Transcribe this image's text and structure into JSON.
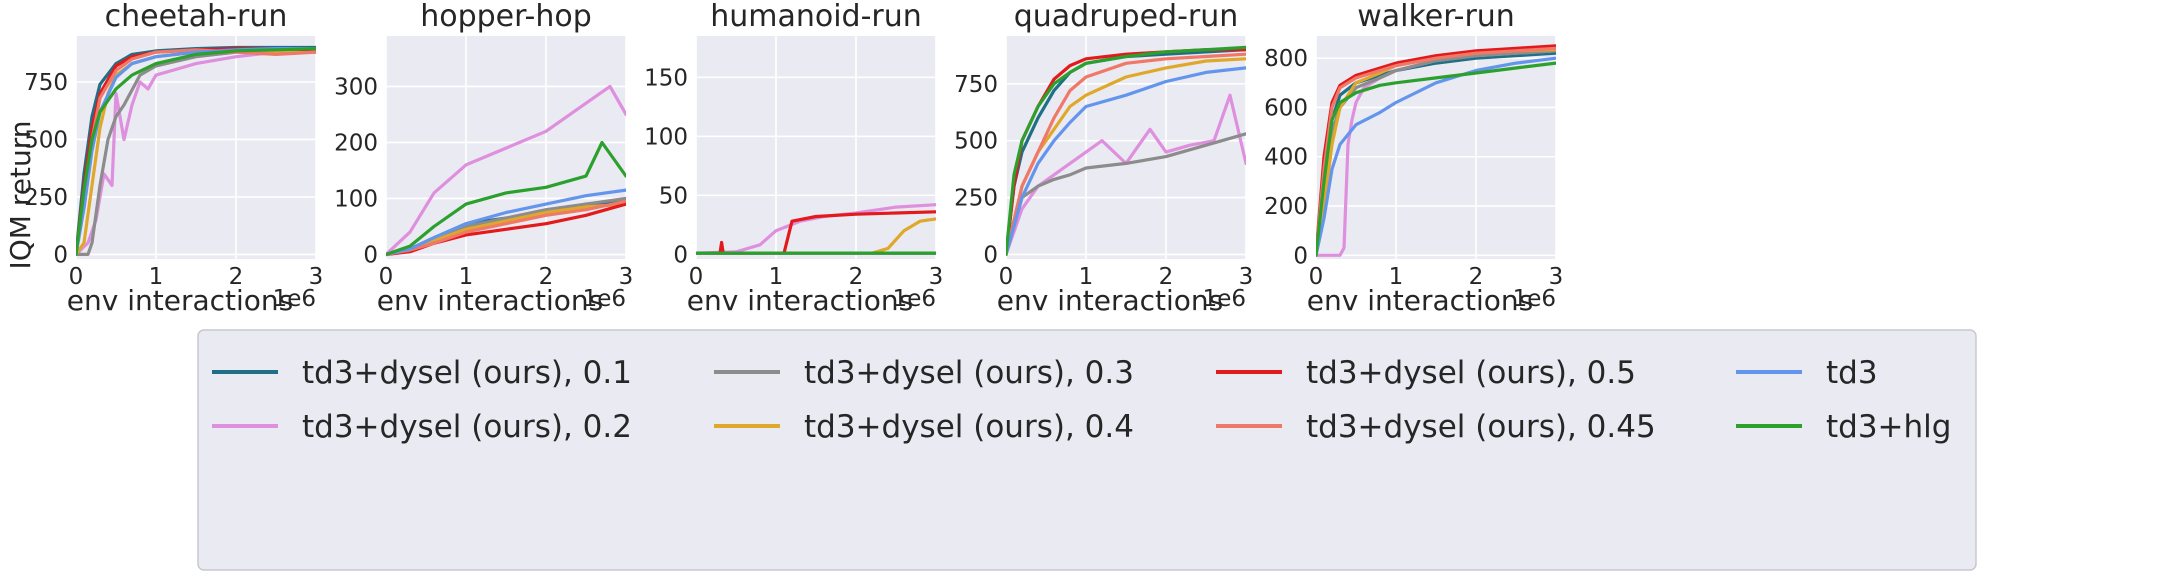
{
  "figure": {
    "ylabel": "IQM return",
    "xlabel": "env interactions",
    "x_offset_label": "1e6"
  },
  "legend": {
    "placement": "bottom-center",
    "entries": [
      {
        "key": "d01",
        "label": "td3+dysel (ours), 0.1",
        "color": "#1f6f86"
      },
      {
        "key": "d02",
        "label": "td3+dysel (ours), 0.2",
        "color": "#de8fde"
      },
      {
        "key": "d03",
        "label": "td3+dysel (ours), 0.3",
        "color": "#8c8c8c"
      },
      {
        "key": "d04",
        "label": "td3+dysel (ours), 0.4",
        "color": "#dfa82a"
      },
      {
        "key": "d05",
        "label": "td3+dysel (ours), 0.5",
        "color": "#e31a1c"
      },
      {
        "key": "d045",
        "label": "td3+dysel (ours), 0.45",
        "color": "#f07868"
      },
      {
        "key": "td3",
        "label": "td3",
        "color": "#6495ed"
      },
      {
        "key": "hlg",
        "label": "td3+hlg",
        "color": "#2ca02c"
      }
    ]
  },
  "chart_data": [
    {
      "type": "line",
      "title": "cheetah-run",
      "xlabel": "env interactions",
      "ylabel": "IQM return",
      "xlim": [
        0,
        3
      ],
      "ylim": [
        -20,
        950
      ],
      "xticks": [
        0,
        1,
        2,
        3
      ],
      "yticks": [
        0,
        250,
        500,
        750
      ],
      "grid": true,
      "series": [
        {
          "key": "d01",
          "x": [
            0,
            0.1,
            0.2,
            0.3,
            0.5,
            0.7,
            1.0,
            1.5,
            2.0,
            2.5,
            3.0
          ],
          "y": [
            0,
            350,
            600,
            740,
            830,
            870,
            885,
            895,
            900,
            900,
            900
          ]
        },
        {
          "key": "d02",
          "x": [
            0,
            0.15,
            0.25,
            0.35,
            0.45,
            0.5,
            0.6,
            0.7,
            0.8,
            0.9,
            1.0,
            1.2,
            1.5,
            2.0,
            2.5,
            3.0
          ],
          "y": [
            0,
            50,
            150,
            350,
            300,
            700,
            500,
            650,
            750,
            720,
            780,
            800,
            830,
            860,
            880,
            880
          ]
        },
        {
          "key": "d03",
          "x": [
            0,
            0.15,
            0.2,
            0.3,
            0.4,
            0.5,
            0.6,
            0.8,
            1.0,
            1.5,
            2.0,
            3.0
          ],
          "y": [
            0,
            0,
            50,
            300,
            500,
            600,
            650,
            780,
            820,
            860,
            880,
            890
          ]
        },
        {
          "key": "d04",
          "x": [
            0,
            0.1,
            0.2,
            0.3,
            0.4,
            0.5,
            0.7,
            1.0,
            1.5,
            2.0,
            2.5,
            3.0
          ],
          "y": [
            0,
            50,
            300,
            550,
            700,
            780,
            830,
            860,
            880,
            890,
            880,
            880
          ]
        },
        {
          "key": "d05",
          "x": [
            0,
            0.1,
            0.2,
            0.3,
            0.5,
            0.7,
            1.0,
            1.5,
            2.0,
            2.5,
            3.0
          ],
          "y": [
            0,
            300,
            550,
            700,
            820,
            860,
            880,
            890,
            895,
            895,
            890
          ]
        },
        {
          "key": "d045",
          "x": [
            0,
            0.1,
            0.2,
            0.3,
            0.5,
            0.7,
            1.0,
            1.5,
            2.0,
            2.5,
            3.0
          ],
          "y": [
            0,
            250,
            500,
            680,
            800,
            850,
            880,
            890,
            880,
            870,
            880
          ]
        },
        {
          "key": "td3",
          "x": [
            0,
            0.1,
            0.2,
            0.3,
            0.5,
            0.7,
            1.0,
            1.5,
            2.0,
            2.5,
            3.0
          ],
          "y": [
            0,
            200,
            450,
            620,
            770,
            830,
            860,
            880,
            890,
            895,
            895
          ]
        },
        {
          "key": "hlg",
          "x": [
            0,
            0.1,
            0.2,
            0.3,
            0.5,
            0.7,
            1.0,
            1.5,
            2.0,
            2.5,
            3.0
          ],
          "y": [
            0,
            280,
            500,
            620,
            720,
            780,
            830,
            870,
            885,
            890,
            895
          ]
        }
      ]
    },
    {
      "type": "line",
      "title": "hopper-hop",
      "xlabel": "env interactions",
      "xlim": [
        0,
        3
      ],
      "ylim": [
        -8,
        390
      ],
      "xticks": [
        0,
        1,
        2,
        3
      ],
      "yticks": [
        0,
        100,
        200,
        300
      ],
      "grid": true,
      "series": [
        {
          "key": "d01",
          "x": [
            0,
            0.3,
            0.6,
            1.0,
            1.5,
            2.0,
            2.5,
            3.0
          ],
          "y": [
            0,
            10,
            30,
            55,
            65,
            75,
            90,
            95
          ]
        },
        {
          "key": "d02",
          "x": [
            0,
            0.3,
            0.6,
            1.0,
            1.5,
            2.0,
            2.5,
            2.8,
            3.0
          ],
          "y": [
            0,
            40,
            110,
            160,
            190,
            220,
            270,
            300,
            250
          ]
        },
        {
          "key": "d03",
          "x": [
            0,
            0.3,
            0.6,
            1.0,
            1.5,
            2.0,
            2.5,
            3.0
          ],
          "y": [
            0,
            10,
            25,
            50,
            65,
            80,
            90,
            100
          ]
        },
        {
          "key": "d04",
          "x": [
            0,
            0.3,
            0.6,
            1.0,
            1.5,
            2.0,
            2.5,
            3.0
          ],
          "y": [
            0,
            8,
            25,
            45,
            60,
            75,
            85,
            90
          ]
        },
        {
          "key": "d05",
          "x": [
            0,
            0.3,
            0.6,
            1.0,
            1.5,
            2.0,
            2.5,
            3.0
          ],
          "y": [
            0,
            5,
            20,
            35,
            45,
            55,
            70,
            90
          ]
        },
        {
          "key": "d045",
          "x": [
            0,
            0.3,
            0.6,
            1.0,
            1.5,
            2.0,
            2.5,
            3.0
          ],
          "y": [
            0,
            8,
            20,
            40,
            55,
            70,
            80,
            95
          ]
        },
        {
          "key": "td3",
          "x": [
            0,
            0.3,
            0.6,
            1.0,
            1.5,
            2.0,
            2.5,
            3.0
          ],
          "y": [
            0,
            10,
            30,
            55,
            75,
            90,
            105,
            115
          ]
        },
        {
          "key": "hlg",
          "x": [
            0,
            0.3,
            0.6,
            1.0,
            1.5,
            2.0,
            2.5,
            2.7,
            3.0
          ],
          "y": [
            0,
            15,
            50,
            90,
            110,
            120,
            140,
            200,
            140
          ]
        }
      ]
    },
    {
      "type": "line",
      "title": "humanoid-run",
      "xlabel": "env interactions",
      "xlim": [
        0,
        3
      ],
      "ylim": [
        -4,
        185
      ],
      "xticks": [
        0,
        1,
        2,
        3
      ],
      "yticks": [
        0,
        50,
        100,
        150
      ],
      "grid": true,
      "series": [
        {
          "key": "d01",
          "x": [
            0,
            3.0
          ],
          "y": [
            1,
            1
          ]
        },
        {
          "key": "d02",
          "x": [
            0,
            0.5,
            0.8,
            1.0,
            1.3,
            1.6,
            2.0,
            2.5,
            3.0
          ],
          "y": [
            1,
            2,
            8,
            20,
            28,
            32,
            35,
            40,
            42
          ]
        },
        {
          "key": "d03",
          "x": [
            0,
            3.0
          ],
          "y": [
            1,
            1
          ]
        },
        {
          "key": "d04",
          "x": [
            0,
            2.2,
            2.4,
            2.6,
            2.8,
            3.0
          ],
          "y": [
            1,
            1,
            5,
            20,
            28,
            30
          ]
        },
        {
          "key": "d05",
          "x": [
            0,
            0.3,
            0.32,
            0.34,
            1.1,
            1.2,
            1.5,
            2.0,
            2.5,
            3.0
          ],
          "y": [
            1,
            1,
            10,
            1,
            1,
            28,
            32,
            34,
            35,
            36
          ]
        },
        {
          "key": "d045",
          "x": [
            0,
            3.0
          ],
          "y": [
            1,
            1
          ]
        },
        {
          "key": "td3",
          "x": [
            0,
            3.0
          ],
          "y": [
            1,
            1
          ]
        },
        {
          "key": "hlg",
          "x": [
            0,
            3.0
          ],
          "y": [
            1,
            1
          ]
        }
      ]
    },
    {
      "type": "line",
      "title": "quadruped-run",
      "xlabel": "env interactions",
      "xlim": [
        0,
        3
      ],
      "ylim": [
        -20,
        960
      ],
      "xticks": [
        0,
        1,
        2,
        3
      ],
      "yticks": [
        0,
        250,
        500,
        750
      ],
      "grid": true,
      "series": [
        {
          "key": "d01",
          "x": [
            0,
            0.1,
            0.2,
            0.4,
            0.6,
            0.8,
            1.0,
            1.5,
            2.0,
            2.5,
            3.0
          ],
          "y": [
            0,
            300,
            450,
            600,
            720,
            800,
            840,
            870,
            880,
            890,
            900
          ]
        },
        {
          "key": "d02",
          "x": [
            0,
            0.2,
            0.4,
            0.6,
            0.8,
            1.0,
            1.2,
            1.5,
            1.8,
            2.0,
            2.3,
            2.6,
            2.8,
            3.0
          ],
          "y": [
            0,
            200,
            300,
            350,
            400,
            450,
            500,
            400,
            550,
            450,
            480,
            500,
            700,
            400
          ]
        },
        {
          "key": "d03",
          "x": [
            0,
            0.2,
            0.4,
            0.6,
            0.8,
            1.0,
            1.5,
            2.0,
            2.5,
            3.0
          ],
          "y": [
            0,
            250,
            300,
            330,
            350,
            380,
            400,
            430,
            480,
            530
          ]
        },
        {
          "key": "d04",
          "x": [
            0,
            0.2,
            0.4,
            0.6,
            0.8,
            1.0,
            1.5,
            2.0,
            2.5,
            3.0
          ],
          "y": [
            0,
            300,
            450,
            550,
            650,
            700,
            780,
            820,
            850,
            860
          ]
        },
        {
          "key": "d05",
          "x": [
            0,
            0.1,
            0.2,
            0.4,
            0.6,
            0.8,
            1.0,
            1.5,
            2.0,
            2.5,
            3.0
          ],
          "y": [
            0,
            300,
            500,
            650,
            770,
            830,
            860,
            880,
            890,
            900,
            900
          ]
        },
        {
          "key": "d045",
          "x": [
            0,
            0.2,
            0.4,
            0.6,
            0.8,
            1.0,
            1.5,
            2.0,
            2.5,
            3.0
          ],
          "y": [
            0,
            300,
            450,
            600,
            720,
            780,
            840,
            860,
            870,
            880
          ]
        },
        {
          "key": "td3",
          "x": [
            0,
            0.2,
            0.4,
            0.6,
            0.8,
            1.0,
            1.5,
            2.0,
            2.5,
            3.0
          ],
          "y": [
            0,
            250,
            400,
            500,
            580,
            650,
            700,
            760,
            800,
            820
          ]
        },
        {
          "key": "hlg",
          "x": [
            0,
            0.1,
            0.2,
            0.4,
            0.6,
            0.8,
            1.0,
            1.5,
            2.0,
            2.5,
            3.0
          ],
          "y": [
            0,
            350,
            500,
            650,
            750,
            800,
            840,
            870,
            890,
            900,
            910
          ]
        }
      ]
    },
    {
      "type": "line",
      "title": "walker-run",
      "xlabel": "env interactions",
      "xlim": [
        0,
        3
      ],
      "ylim": [
        -15,
        890
      ],
      "xticks": [
        0,
        1,
        2,
        3
      ],
      "yticks": [
        0,
        200,
        400,
        600,
        800
      ],
      "grid": true,
      "series": [
        {
          "key": "d01",
          "x": [
            0,
            0.1,
            0.2,
            0.3,
            0.5,
            0.8,
            1.0,
            1.5,
            2.0,
            2.5,
            3.0
          ],
          "y": [
            0,
            300,
            550,
            650,
            700,
            730,
            750,
            780,
            800,
            810,
            820
          ]
        },
        {
          "key": "d02",
          "x": [
            0,
            0.3,
            0.35,
            0.4,
            0.45,
            0.5,
            0.6,
            0.8,
            1.0,
            1.5,
            2.0,
            2.5,
            3.0
          ],
          "y": [
            0,
            0,
            30,
            450,
            550,
            620,
            680,
            720,
            750,
            790,
            810,
            820,
            830
          ]
        },
        {
          "key": "d03",
          "x": [
            0,
            0.1,
            0.2,
            0.3,
            0.5,
            0.8,
            1.0,
            1.5,
            2.0,
            2.5,
            3.0
          ],
          "y": [
            0,
            250,
            500,
            600,
            680,
            720,
            750,
            790,
            810,
            820,
            830
          ]
        },
        {
          "key": "d04",
          "x": [
            0,
            0.1,
            0.2,
            0.3,
            0.5,
            0.8,
            1.0,
            1.5,
            2.0,
            2.5,
            3.0
          ],
          "y": [
            0,
            200,
            450,
            600,
            700,
            740,
            770,
            800,
            820,
            830,
            835
          ]
        },
        {
          "key": "d05",
          "x": [
            0,
            0.1,
            0.2,
            0.3,
            0.5,
            0.8,
            1.0,
            1.5,
            2.0,
            2.5,
            3.0
          ],
          "y": [
            0,
            400,
            620,
            690,
            730,
            760,
            780,
            810,
            830,
            840,
            850
          ]
        },
        {
          "key": "d045",
          "x": [
            0,
            0.1,
            0.2,
            0.3,
            0.5,
            0.8,
            1.0,
            1.5,
            2.0,
            2.5,
            3.0
          ],
          "y": [
            0,
            350,
            600,
            680,
            720,
            750,
            770,
            800,
            820,
            830,
            840
          ]
        },
        {
          "key": "td3",
          "x": [
            0,
            0.1,
            0.2,
            0.3,
            0.5,
            0.8,
            1.0,
            1.5,
            2.0,
            2.5,
            3.0
          ],
          "y": [
            0,
            150,
            350,
            450,
            530,
            580,
            620,
            700,
            750,
            780,
            800
          ]
        },
        {
          "key": "hlg",
          "x": [
            0,
            0.1,
            0.2,
            0.3,
            0.5,
            0.8,
            1.0,
            1.5,
            2.0,
            2.5,
            3.0
          ],
          "y": [
            0,
            300,
            550,
            620,
            660,
            690,
            700,
            720,
            740,
            760,
            780
          ]
        }
      ]
    }
  ]
}
